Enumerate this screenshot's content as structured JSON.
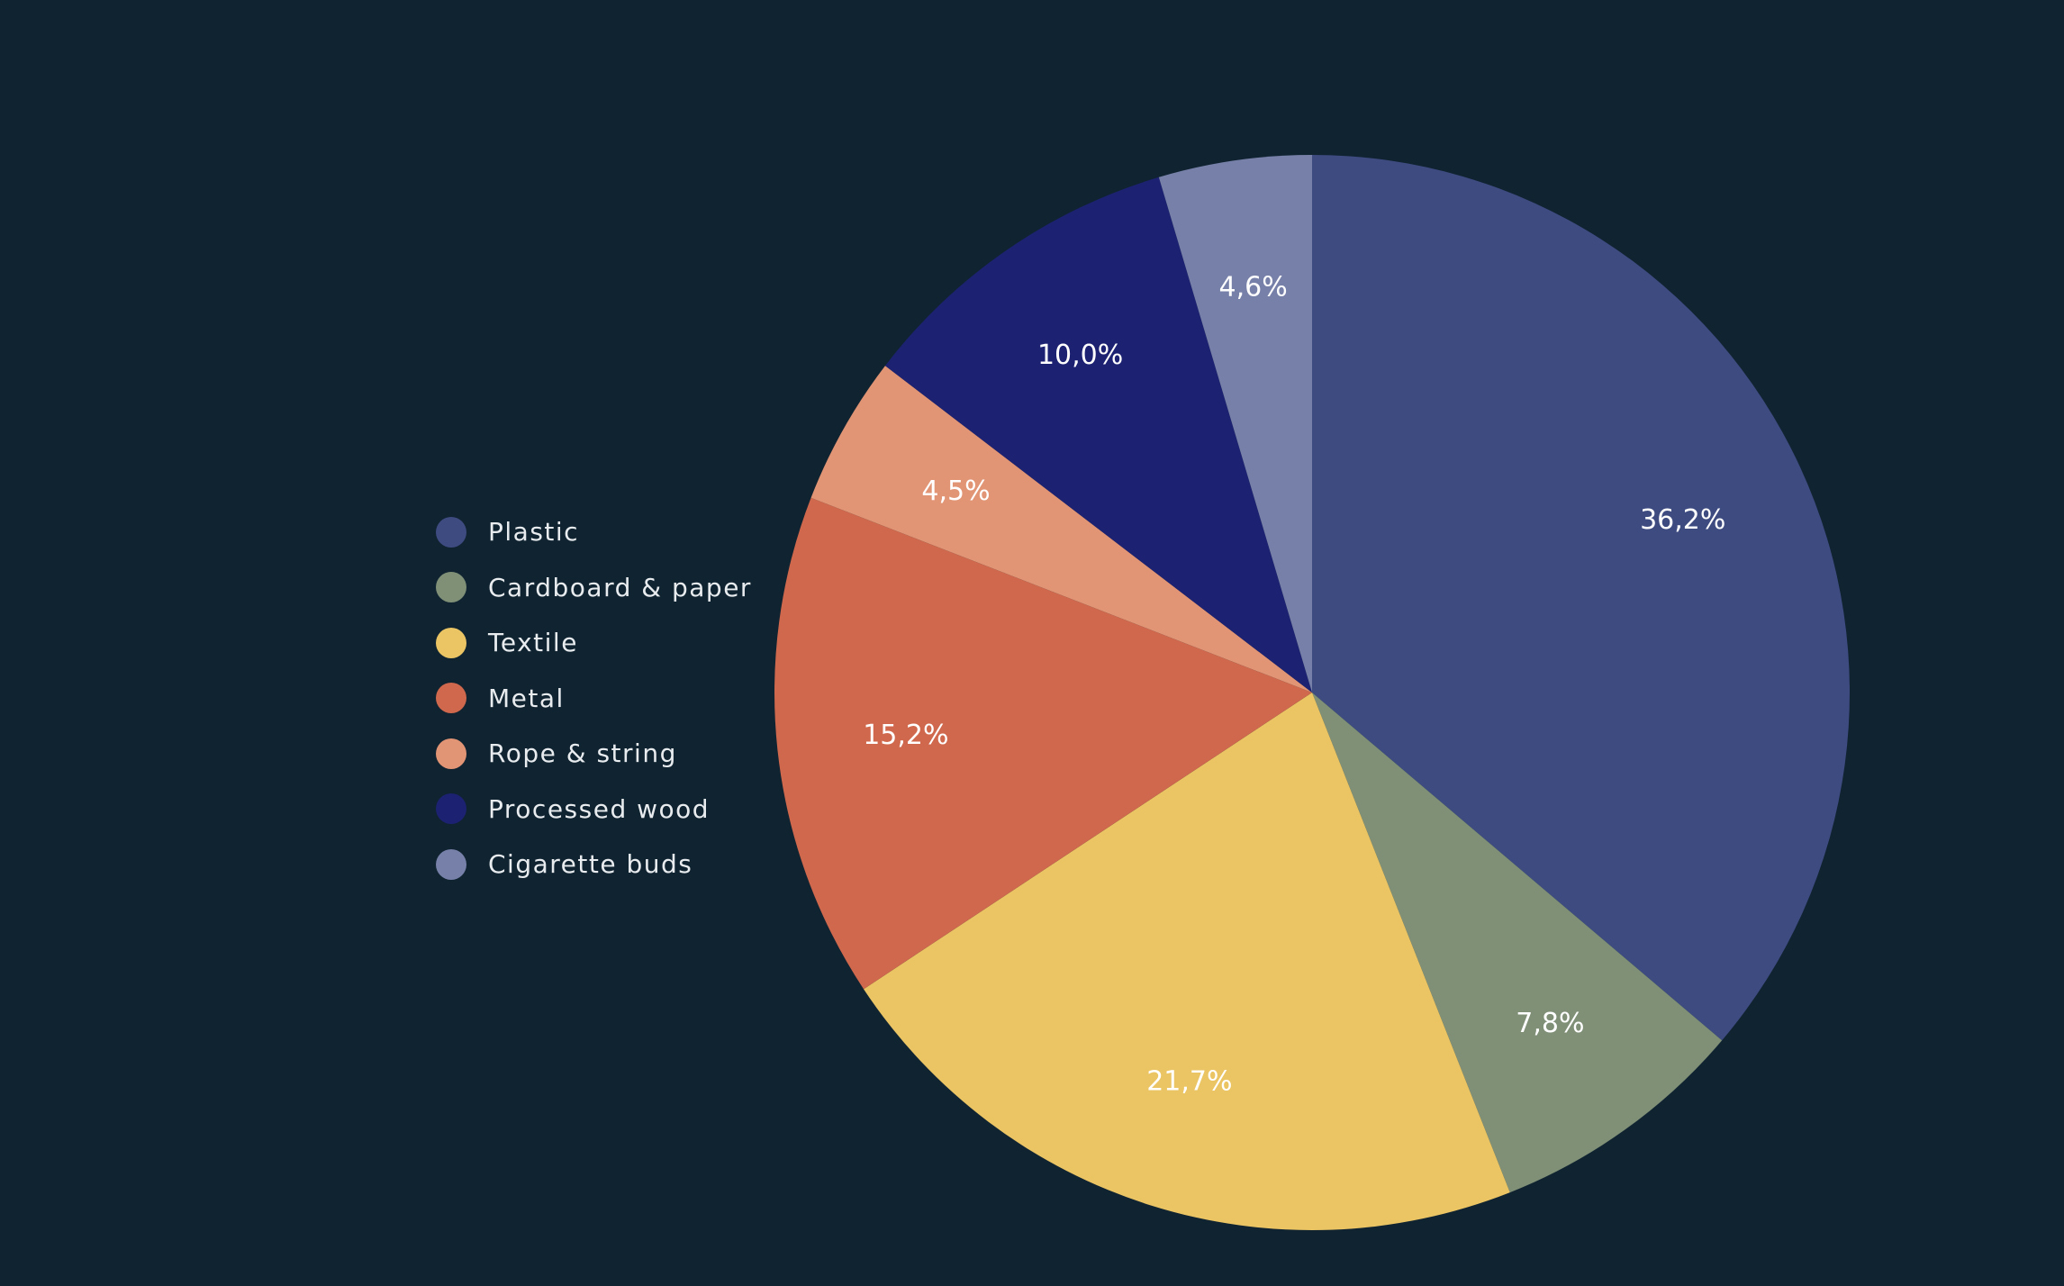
{
  "chart_data": {
    "type": "pie",
    "title": "",
    "legend_position": "left",
    "start_angle": "top, clockwise",
    "slices": [
      {
        "label": "Plastic",
        "value": 36.2,
        "display": "36,2%",
        "color": "#3d4b80"
      },
      {
        "label": "Cardboard & paper",
        "value": 7.8,
        "display": "7,8%",
        "color": "#7f9077"
      },
      {
        "label": "Textile",
        "value": 21.7,
        "display": "21,7%",
        "color": "#ebc564"
      },
      {
        "label": "Metal",
        "value": 15.2,
        "display": "15,2%",
        "color": "#cf684c"
      },
      {
        "label": "Rope & string",
        "value": 4.5,
        "display": "4,5%",
        "color": "#e29575"
      },
      {
        "label": "Processed wood",
        "value": 10.0,
        "display": "10,0%",
        "color": "#1c2271"
      },
      {
        "label": "Cigarette buds",
        "value": 4.6,
        "display": "4,6%",
        "color": "#7780a8"
      }
    ]
  },
  "colors": {
    "background": "#102331",
    "label_text": "#ffffff",
    "legend_text": "#e8ecef"
  }
}
